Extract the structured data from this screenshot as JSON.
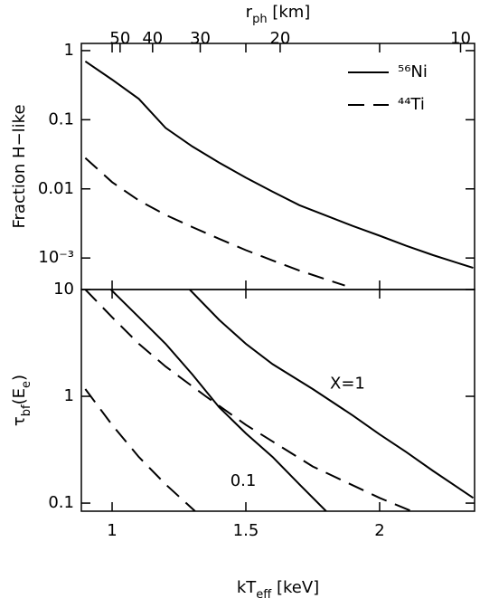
{
  "chart_data": [
    {
      "type": "line",
      "ylabel_parts": [
        "Fraction H−like"
      ],
      "x2label_parts": [
        "r",
        "ph",
        " [km]"
      ],
      "xlim": [
        0.885,
        2.355
      ],
      "xticks": [
        1,
        1.5,
        2
      ],
      "ylim": [
        0.00035,
        1.27
      ],
      "yscale": "log",
      "yticks": [
        {
          "value": 1,
          "label": "1"
        },
        {
          "value": 0.1,
          "label": "0.1"
        },
        {
          "value": 0.01,
          "label": "0.01"
        },
        {
          "value": 0.001,
          "label": "10⁻³"
        }
      ],
      "x2lim": [
        67.7,
        9.56
      ],
      "x2scale": "inverse-sqrt",
      "x2ticks": [
        50,
        40,
        30,
        20,
        10
      ],
      "legend": "upper right",
      "series": [
        {
          "name": "⁵⁶Ni",
          "color": "#000000",
          "dash": false,
          "x": [
            0.9,
            1.0,
            1.1,
            1.2,
            1.3,
            1.4,
            1.5,
            1.6,
            1.7,
            1.8,
            1.9,
            2.0,
            2.1,
            2.2,
            2.35
          ],
          "values": [
            0.7,
            0.38,
            0.2,
            0.076,
            0.041,
            0.024,
            0.0145,
            0.0091,
            0.0058,
            0.0041,
            0.0029,
            0.0021,
            0.0015,
            0.0011,
            0.00072
          ]
        },
        {
          "name": "⁴⁴Ti",
          "color": "#000000",
          "dash": true,
          "x": [
            0.9,
            1.0,
            1.1,
            1.2,
            1.3,
            1.4,
            1.5,
            1.6,
            1.7,
            1.8,
            1.87
          ],
          "values": [
            0.028,
            0.0125,
            0.0068,
            0.0042,
            0.0028,
            0.0019,
            0.0013,
            0.00092,
            0.00066,
            0.00049,
            0.0004
          ]
        }
      ]
    },
    {
      "type": "line",
      "ylabel_parts": [
        "τ",
        "bf",
        "(E",
        "e",
        ")"
      ],
      "xlabel_parts": [
        "kT",
        "eff",
        " [keV]"
      ],
      "xlim": [
        0.885,
        2.355
      ],
      "xticks": [
        1,
        1.5,
        2
      ],
      "ylim": [
        0.084,
        10
      ],
      "yscale": "log",
      "yticks": [
        10,
        1,
        0.1
      ],
      "series": [
        {
          "color": "#000000",
          "dash": false,
          "x": [
            1.29,
            1.4,
            1.5,
            1.6,
            1.75,
            1.9,
            2.0,
            2.1,
            2.2,
            2.35
          ],
          "values": [
            10,
            5.2,
            3.1,
            2.0,
            1.17,
            0.66,
            0.44,
            0.3,
            0.2,
            0.112
          ]
        },
        {
          "color": "#000000",
          "dash": false,
          "x": [
            0.995,
            1.1,
            1.2,
            1.3,
            1.4,
            1.5,
            1.6,
            1.7,
            1.8
          ],
          "values": [
            10,
            5.5,
            3.1,
            1.6,
            0.79,
            0.45,
            0.27,
            0.15,
            0.084
          ]
        },
        {
          "color": "#000000",
          "dash": true,
          "x": [
            0.9,
            1.0,
            1.1,
            1.2,
            1.35,
            1.5,
            1.75,
            2.0,
            2.12
          ],
          "values": [
            10,
            5.5,
            3.1,
            1.9,
            1.0,
            0.54,
            0.22,
            0.112,
            0.084
          ]
        },
        {
          "color": "#000000",
          "dash": true,
          "x": [
            0.9,
            1.0,
            1.1,
            1.2,
            1.31
          ],
          "values": [
            1.17,
            0.54,
            0.27,
            0.15,
            0.084
          ]
        }
      ],
      "annotations": [
        {
          "text": "X=1",
          "x": 1.88,
          "y": 1.3
        },
        {
          "text": "0.1",
          "x": 1.49,
          "y": 0.16
        }
      ]
    }
  ]
}
